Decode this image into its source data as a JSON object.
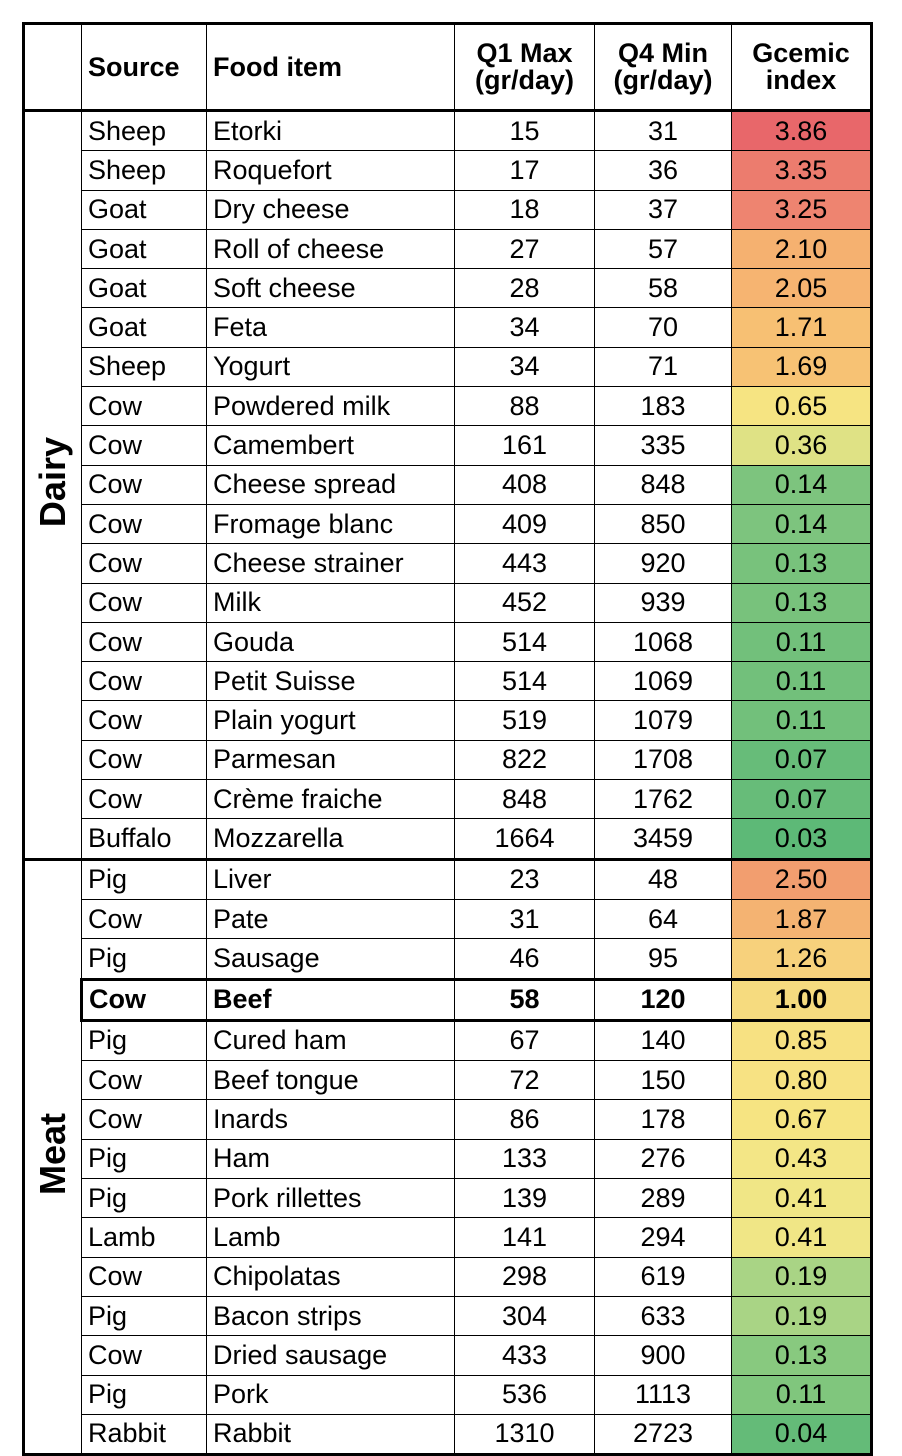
{
  "header": [
    "Source",
    "Food item",
    "Q1 Max (gr/day)",
    "Q4 Min (gr/day)",
    "Gcemic index"
  ],
  "groups": [
    {
      "name": "Dairy",
      "rows": [
        {
          "cells": [
            "Sheep",
            "Etorki",
            15,
            31,
            "3.86"
          ],
          "color": "#e8676a"
        },
        {
          "cells": [
            "Sheep",
            "Roquefort",
            17,
            36,
            "3.35"
          ],
          "color": "#ec7c6e"
        },
        {
          "cells": [
            "Goat",
            "Dry cheese",
            18,
            37,
            "3.25"
          ],
          "color": "#ee8470"
        },
        {
          "cells": [
            "Goat",
            "Roll of cheese",
            27,
            57,
            "2.10"
          ],
          "color": "#f5b170"
        },
        {
          "cells": [
            "Goat",
            "Soft cheese",
            28,
            58,
            "2.05"
          ],
          "color": "#f6b471"
        },
        {
          "cells": [
            "Goat",
            "Feta",
            34,
            70,
            "1.71"
          ],
          "color": "#f7c073"
        },
        {
          "cells": [
            "Sheep",
            "Yogurt",
            34,
            71,
            "1.69"
          ],
          "color": "#f7c274"
        },
        {
          "cells": [
            "Cow",
            "Powdered milk",
            88,
            183,
            "0.65"
          ],
          "color": "#f6e482"
        },
        {
          "cells": [
            "Cow",
            "Camembert",
            161,
            335,
            "0.36"
          ],
          "color": "#dfe285"
        },
        {
          "cells": [
            "Cow",
            "Cheese spread",
            408,
            848,
            "0.14"
          ],
          "color": "#7dc47e"
        },
        {
          "cells": [
            "Cow",
            "Fromage blanc",
            409,
            850,
            "0.14"
          ],
          "color": "#7dc47e"
        },
        {
          "cells": [
            "Cow",
            "Cheese strainer",
            443,
            920,
            "0.13"
          ],
          "color": "#78c27c"
        },
        {
          "cells": [
            "Cow",
            "Milk",
            452,
            939,
            "0.13"
          ],
          "color": "#78c27c"
        },
        {
          "cells": [
            "Cow",
            "Gouda",
            514,
            1068,
            "0.11"
          ],
          "color": "#72c07b"
        },
        {
          "cells": [
            "Cow",
            "Petit Suisse",
            514,
            1069,
            "0.11"
          ],
          "color": "#72c07b"
        },
        {
          "cells": [
            "Cow",
            "Plain yogurt",
            519,
            1079,
            "0.11"
          ],
          "color": "#72c07b"
        },
        {
          "cells": [
            "Cow",
            "Parmesan",
            822,
            1708,
            "0.07"
          ],
          "color": "#67bc79"
        },
        {
          "cells": [
            "Cow",
            "Crème fraiche",
            848,
            1762,
            "0.07"
          ],
          "color": "#67bc79"
        },
        {
          "cells": [
            "Buffalo",
            "Mozzarella",
            1664,
            3459,
            "0.03"
          ],
          "color": "#5db977"
        }
      ]
    },
    {
      "name": "Meat",
      "rows": [
        {
          "cells": [
            "Pig",
            "Liver",
            23,
            48,
            "2.50"
          ],
          "color": "#f29e6f"
        },
        {
          "cells": [
            "Cow",
            "Pate",
            31,
            64,
            "1.87"
          ],
          "color": "#f4b372"
        },
        {
          "cells": [
            "Pig",
            "Sausage",
            46,
            95,
            "1.26"
          ],
          "color": "#f7d17c"
        },
        {
          "cells": [
            "Cow",
            "Beef",
            58,
            120,
            "1.00"
          ],
          "color": "#f6db7f",
          "bold": true
        },
        {
          "cells": [
            "Pig",
            "Cured ham",
            67,
            140,
            "0.85"
          ],
          "color": "#f7e182"
        },
        {
          "cells": [
            "Cow",
            "Beef tongue",
            72,
            150,
            "0.80"
          ],
          "color": "#f7e283"
        },
        {
          "cells": [
            "Cow",
            "Inards",
            86,
            178,
            "0.67"
          ],
          "color": "#f6e482"
        },
        {
          "cells": [
            "Pig",
            "Ham",
            133,
            276,
            "0.43"
          ],
          "color": "#f3e686"
        },
        {
          "cells": [
            "Pig",
            "Pork rillettes",
            139,
            289,
            "0.41"
          ],
          "color": "#f0e686"
        },
        {
          "cells": [
            "Lamb",
            "Lamb",
            141,
            294,
            "0.41"
          ],
          "color": "#f0e686"
        },
        {
          "cells": [
            "Cow",
            "Chipolatas",
            298,
            619,
            "0.19"
          ],
          "color": "#a9d485"
        },
        {
          "cells": [
            "Pig",
            "Bacon strips",
            304,
            633,
            "0.19"
          ],
          "color": "#a9d485"
        },
        {
          "cells": [
            "Cow",
            "Dried sausage",
            433,
            900,
            "0.13"
          ],
          "color": "#88c97f"
        },
        {
          "cells": [
            "Pig",
            "Pork",
            536,
            1113,
            "0.11"
          ],
          "color": "#80c67d"
        },
        {
          "cells": [
            "Rabbit",
            "Rabbit",
            1310,
            2723,
            "0.04"
          ],
          "color": "#64bb78"
        }
      ]
    }
  ]
}
